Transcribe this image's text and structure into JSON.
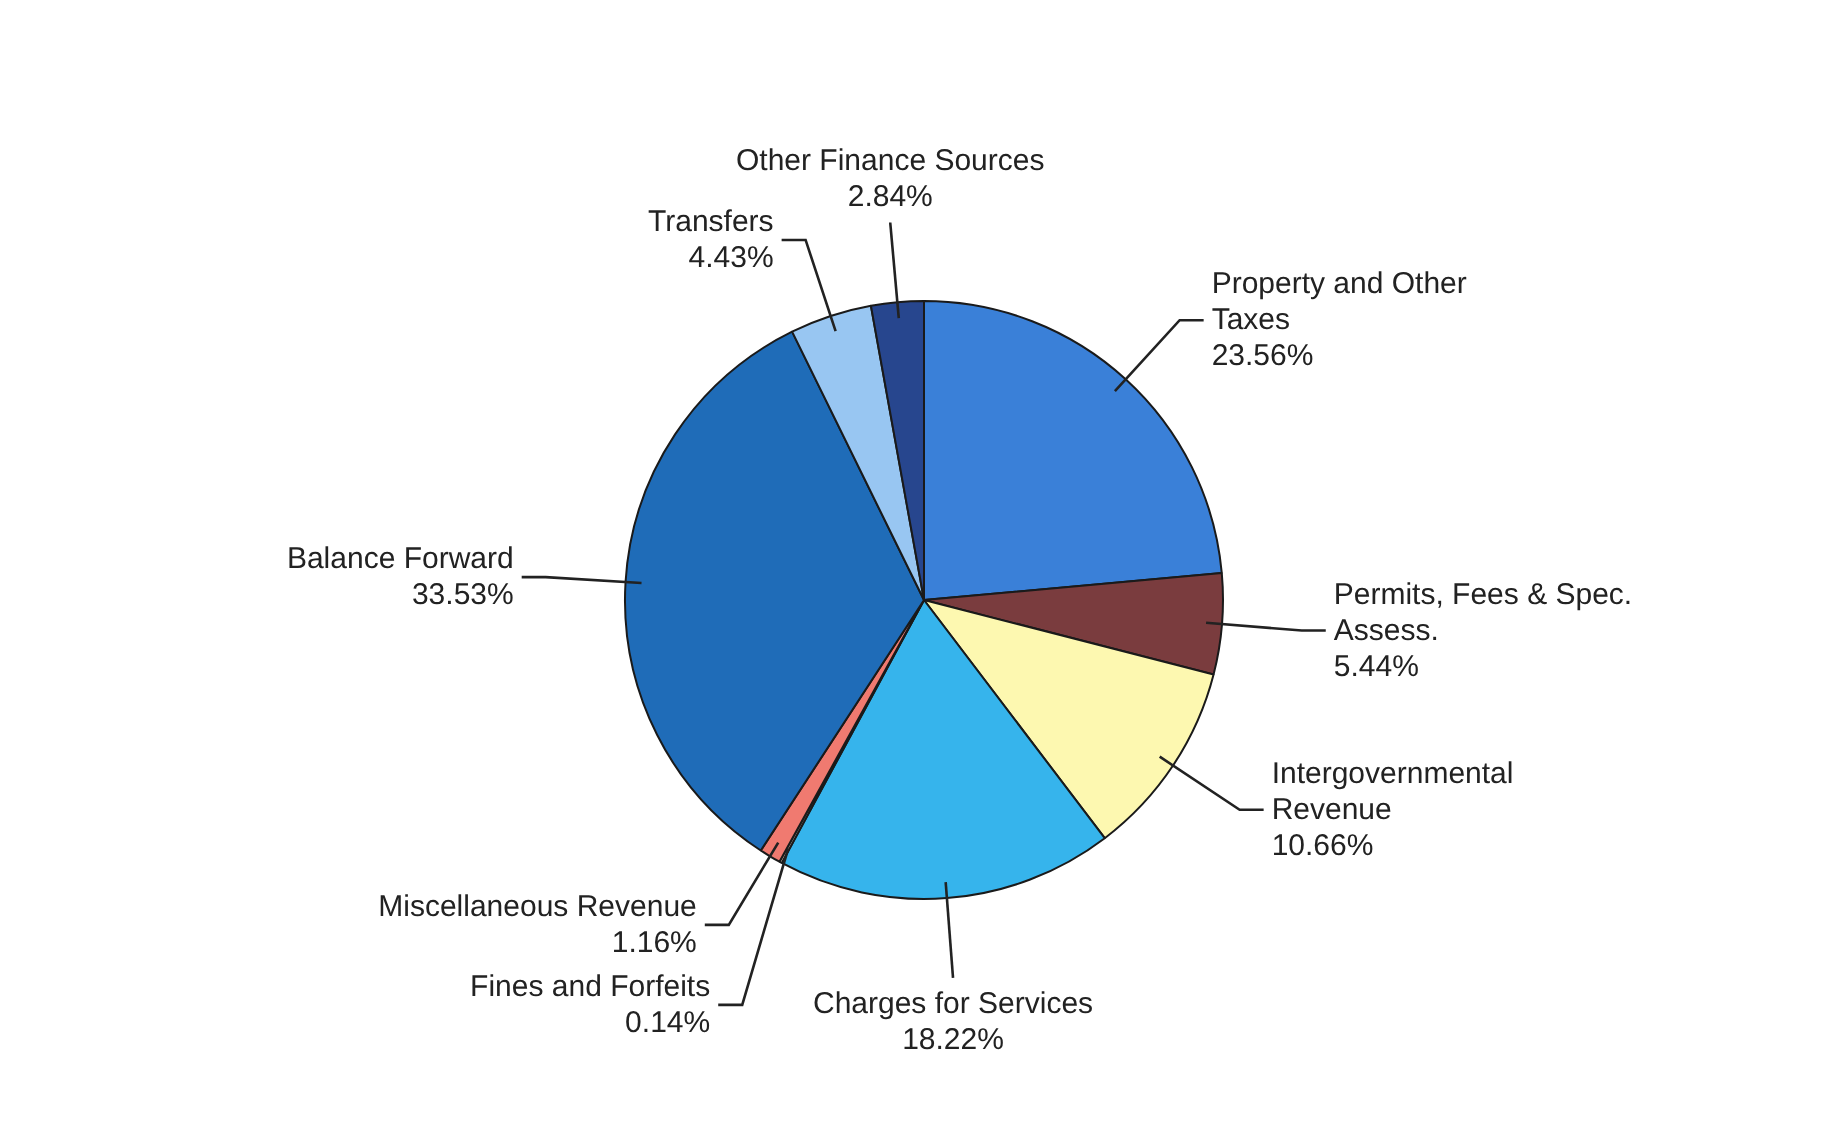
{
  "chart_data": {
    "type": "pie",
    "categories": [
      "Property and Other Taxes",
      "Permits, Fees & Spec. Assess.",
      "Intergovernmental Revenue",
      "Charges for Services",
      "Fines and Forfeits",
      "Miscellaneous Revenue",
      "Balance Forward",
      "Transfers",
      "Other Finance Sources"
    ],
    "values": [
      23.56,
      5.44,
      10.66,
      18.22,
      0.14,
      1.16,
      33.53,
      4.43,
      2.84
    ],
    "value_labels": [
      "23.56%",
      "5.44%",
      "10.66%",
      "18.22%",
      "0.14%",
      "1.16%",
      "33.53%",
      "4.43%",
      "2.84%"
    ],
    "colors": [
      "#3a80d8",
      "#7a3c3e",
      "#fdf8b0",
      "#36b4ec",
      "#e8d0c0",
      "#f07a70",
      "#1f6cb8",
      "#98c6f2",
      "#27468e"
    ],
    "legend": false
  }
}
